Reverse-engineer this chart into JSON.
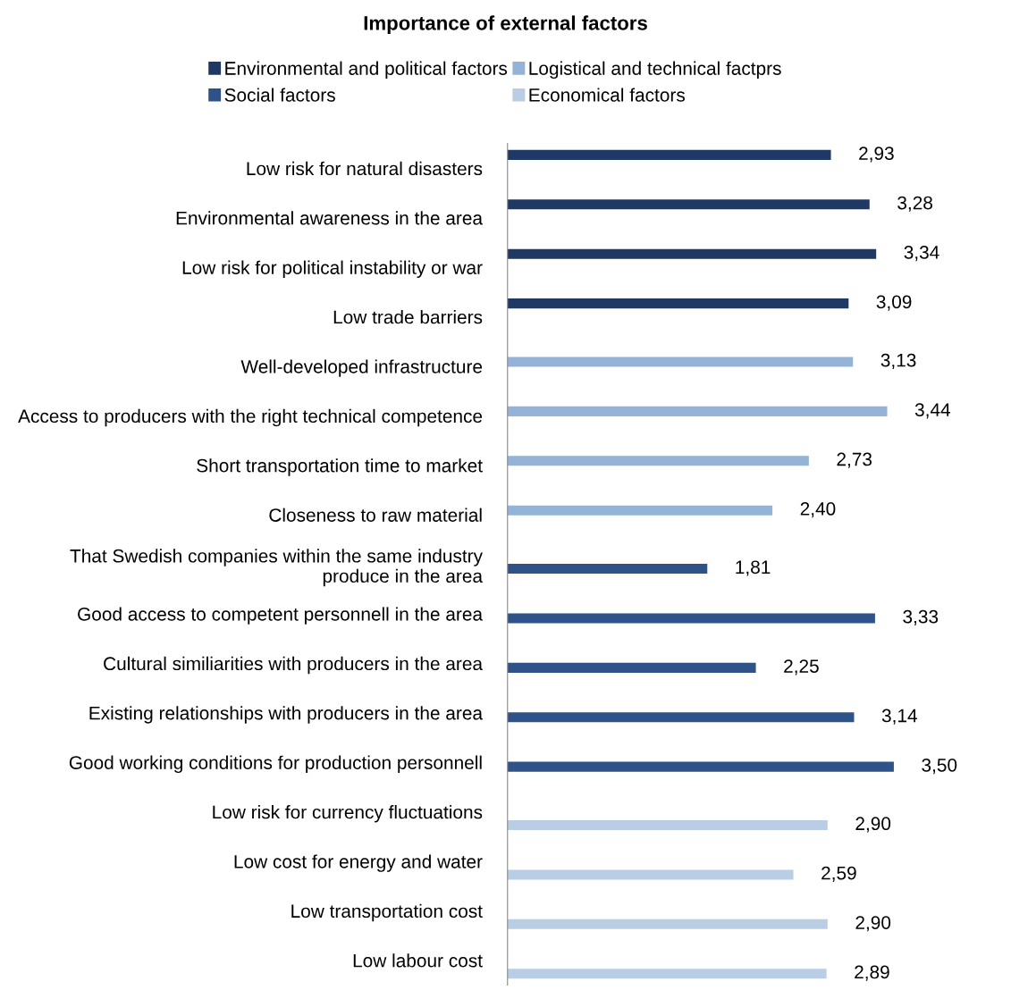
{
  "chart_data": {
    "type": "bar",
    "orientation": "horizontal",
    "title": "Importance of external factors",
    "categories": [
      "Low risk for natural disasters",
      "Environmental awareness in the area",
      "Low risk for political instability or war",
      "Low trade barriers",
      "Well-developed infrastructure",
      "Access to producers with the right technical competence",
      "Short transportation time to market",
      "Closeness to raw material",
      "That Swedish companies within the same industry produce in the area",
      "Good access to competent personnell in the area",
      "Cultural similiarities with producers in the area",
      "Existing relationships with producers in the area",
      "Good working conditions for production personnell",
      "Low risk for currency fluctuations",
      "Low cost for energy and water",
      "Low transportation cost",
      "Low labour cost"
    ],
    "series": [
      {
        "name": "Environmental and political factors",
        "color": "#1f3864",
        "values": [
          2.93,
          3.28,
          3.34,
          3.09,
          null,
          null,
          null,
          null,
          null,
          null,
          null,
          null,
          null,
          null,
          null,
          null,
          null
        ],
        "value_labels": [
          "2,93",
          "3,28",
          "3,34",
          "3,09",
          null,
          null,
          null,
          null,
          null,
          null,
          null,
          null,
          null,
          null,
          null,
          null,
          null
        ]
      },
      {
        "name": "Logistical and technical factprs",
        "color": "#95b3d7",
        "values": [
          null,
          null,
          null,
          null,
          3.13,
          3.44,
          2.73,
          2.4,
          null,
          null,
          null,
          null,
          null,
          null,
          null,
          null,
          null
        ],
        "value_labels": [
          null,
          null,
          null,
          null,
          "3,13",
          "3,44",
          "2,73",
          "2,40",
          null,
          null,
          null,
          null,
          null,
          null,
          null,
          null,
          null
        ]
      },
      {
        "name": "Social factors",
        "color": "#2f5289",
        "values": [
          null,
          null,
          null,
          null,
          null,
          null,
          null,
          null,
          1.81,
          3.33,
          2.25,
          3.14,
          3.5,
          null,
          null,
          null,
          null
        ],
        "value_labels": [
          null,
          null,
          null,
          null,
          null,
          null,
          null,
          null,
          "1,81",
          "3,33",
          "2,25",
          "3,14",
          "3,50",
          null,
          null,
          null,
          null
        ]
      },
      {
        "name": "Economical factors",
        "color": "#b9cde5",
        "values": [
          null,
          null,
          null,
          null,
          null,
          null,
          null,
          null,
          null,
          null,
          null,
          null,
          null,
          2.9,
          2.59,
          2.9,
          2.89
        ],
        "value_labels": [
          null,
          null,
          null,
          null,
          null,
          null,
          null,
          null,
          null,
          null,
          null,
          null,
          null,
          "2,90",
          "2,59",
          "2,90",
          "2,89"
        ]
      }
    ],
    "legend": "top",
    "grid": false
  }
}
